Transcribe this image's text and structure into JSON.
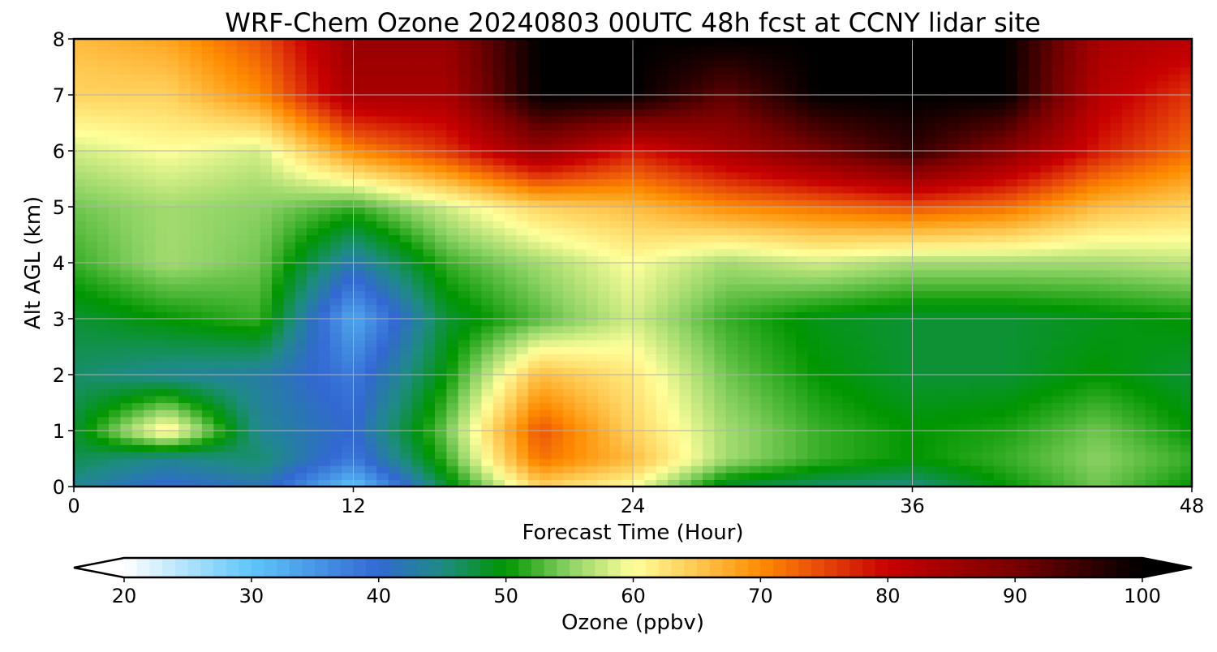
{
  "chart_data": {
    "type": "heatmap",
    "title": "WRF-Chem Ozone  20240803 00UTC 48h fcst at CCNY lidar site",
    "xlabel": "Forecast Time (Hour)",
    "ylabel": "Alt AGL (km)",
    "xlim": [
      0,
      48
    ],
    "ylim": [
      0,
      8
    ],
    "x_ticks": [
      0,
      12,
      24,
      36,
      48
    ],
    "y_ticks": [
      0,
      1,
      2,
      3,
      4,
      5,
      6,
      7,
      8
    ],
    "grid": true,
    "x": [
      0,
      4,
      8,
      12,
      16,
      20,
      24,
      28,
      32,
      36,
      40,
      44,
      48
    ],
    "y": [
      0,
      0.5,
      1,
      2,
      3,
      4,
      5,
      6,
      7,
      8
    ],
    "z": [
      [
        44,
        40,
        42,
        30,
        48,
        64,
        60,
        48,
        46,
        45,
        50,
        54,
        50
      ],
      [
        47,
        44,
        46,
        38,
        52,
        72,
        66,
        56,
        52,
        50,
        52,
        55,
        52
      ],
      [
        48,
        62,
        44,
        40,
        54,
        74,
        64,
        56,
        52,
        50,
        51,
        54,
        50
      ],
      [
        46,
        44,
        43,
        38,
        50,
        66,
        62,
        54,
        50,
        48,
        48,
        50,
        48
      ],
      [
        48,
        50,
        52,
        33,
        48,
        53,
        58,
        52,
        49,
        48,
        48,
        49,
        50
      ],
      [
        52,
        56,
        54,
        42,
        52,
        56,
        60,
        56,
        58,
        56,
        56,
        56,
        57
      ],
      [
        54,
        56,
        55,
        52,
        58,
        64,
        66,
        70,
        72,
        74,
        72,
        66,
        64
      ],
      [
        58,
        60,
        58,
        70,
        76,
        86,
        78,
        84,
        90,
        96,
        88,
        78,
        72
      ],
      [
        64,
        64,
        70,
        84,
        84,
        100,
        100,
        92,
        100,
        100,
        100,
        82,
        76
      ],
      [
        66,
        68,
        74,
        86,
        86,
        100,
        100,
        100,
        100,
        100,
        100,
        84,
        82
      ]
    ],
    "colorbar": {
      "label": "Ozone  (ppbv)",
      "min": 20,
      "max": 100,
      "ticks": [
        20,
        30,
        40,
        50,
        60,
        70,
        80,
        90,
        100
      ],
      "extend": "both",
      "colors": [
        {
          "v": 20,
          "c": "#ffffff"
        },
        {
          "v": 30,
          "c": "#5ec6fa"
        },
        {
          "v": 40,
          "c": "#3268d2"
        },
        {
          "v": 45,
          "c": "#1e8c82"
        },
        {
          "v": 50,
          "c": "#009600"
        },
        {
          "v": 55,
          "c": "#8cd264"
        },
        {
          "v": 60,
          "c": "#ffff9a"
        },
        {
          "v": 65,
          "c": "#ffc850"
        },
        {
          "v": 70,
          "c": "#ff8c00"
        },
        {
          "v": 75,
          "c": "#e6460a"
        },
        {
          "v": 80,
          "c": "#c80000"
        },
        {
          "v": 90,
          "c": "#780000"
        },
        {
          "v": 100,
          "c": "#000000"
        }
      ]
    }
  }
}
